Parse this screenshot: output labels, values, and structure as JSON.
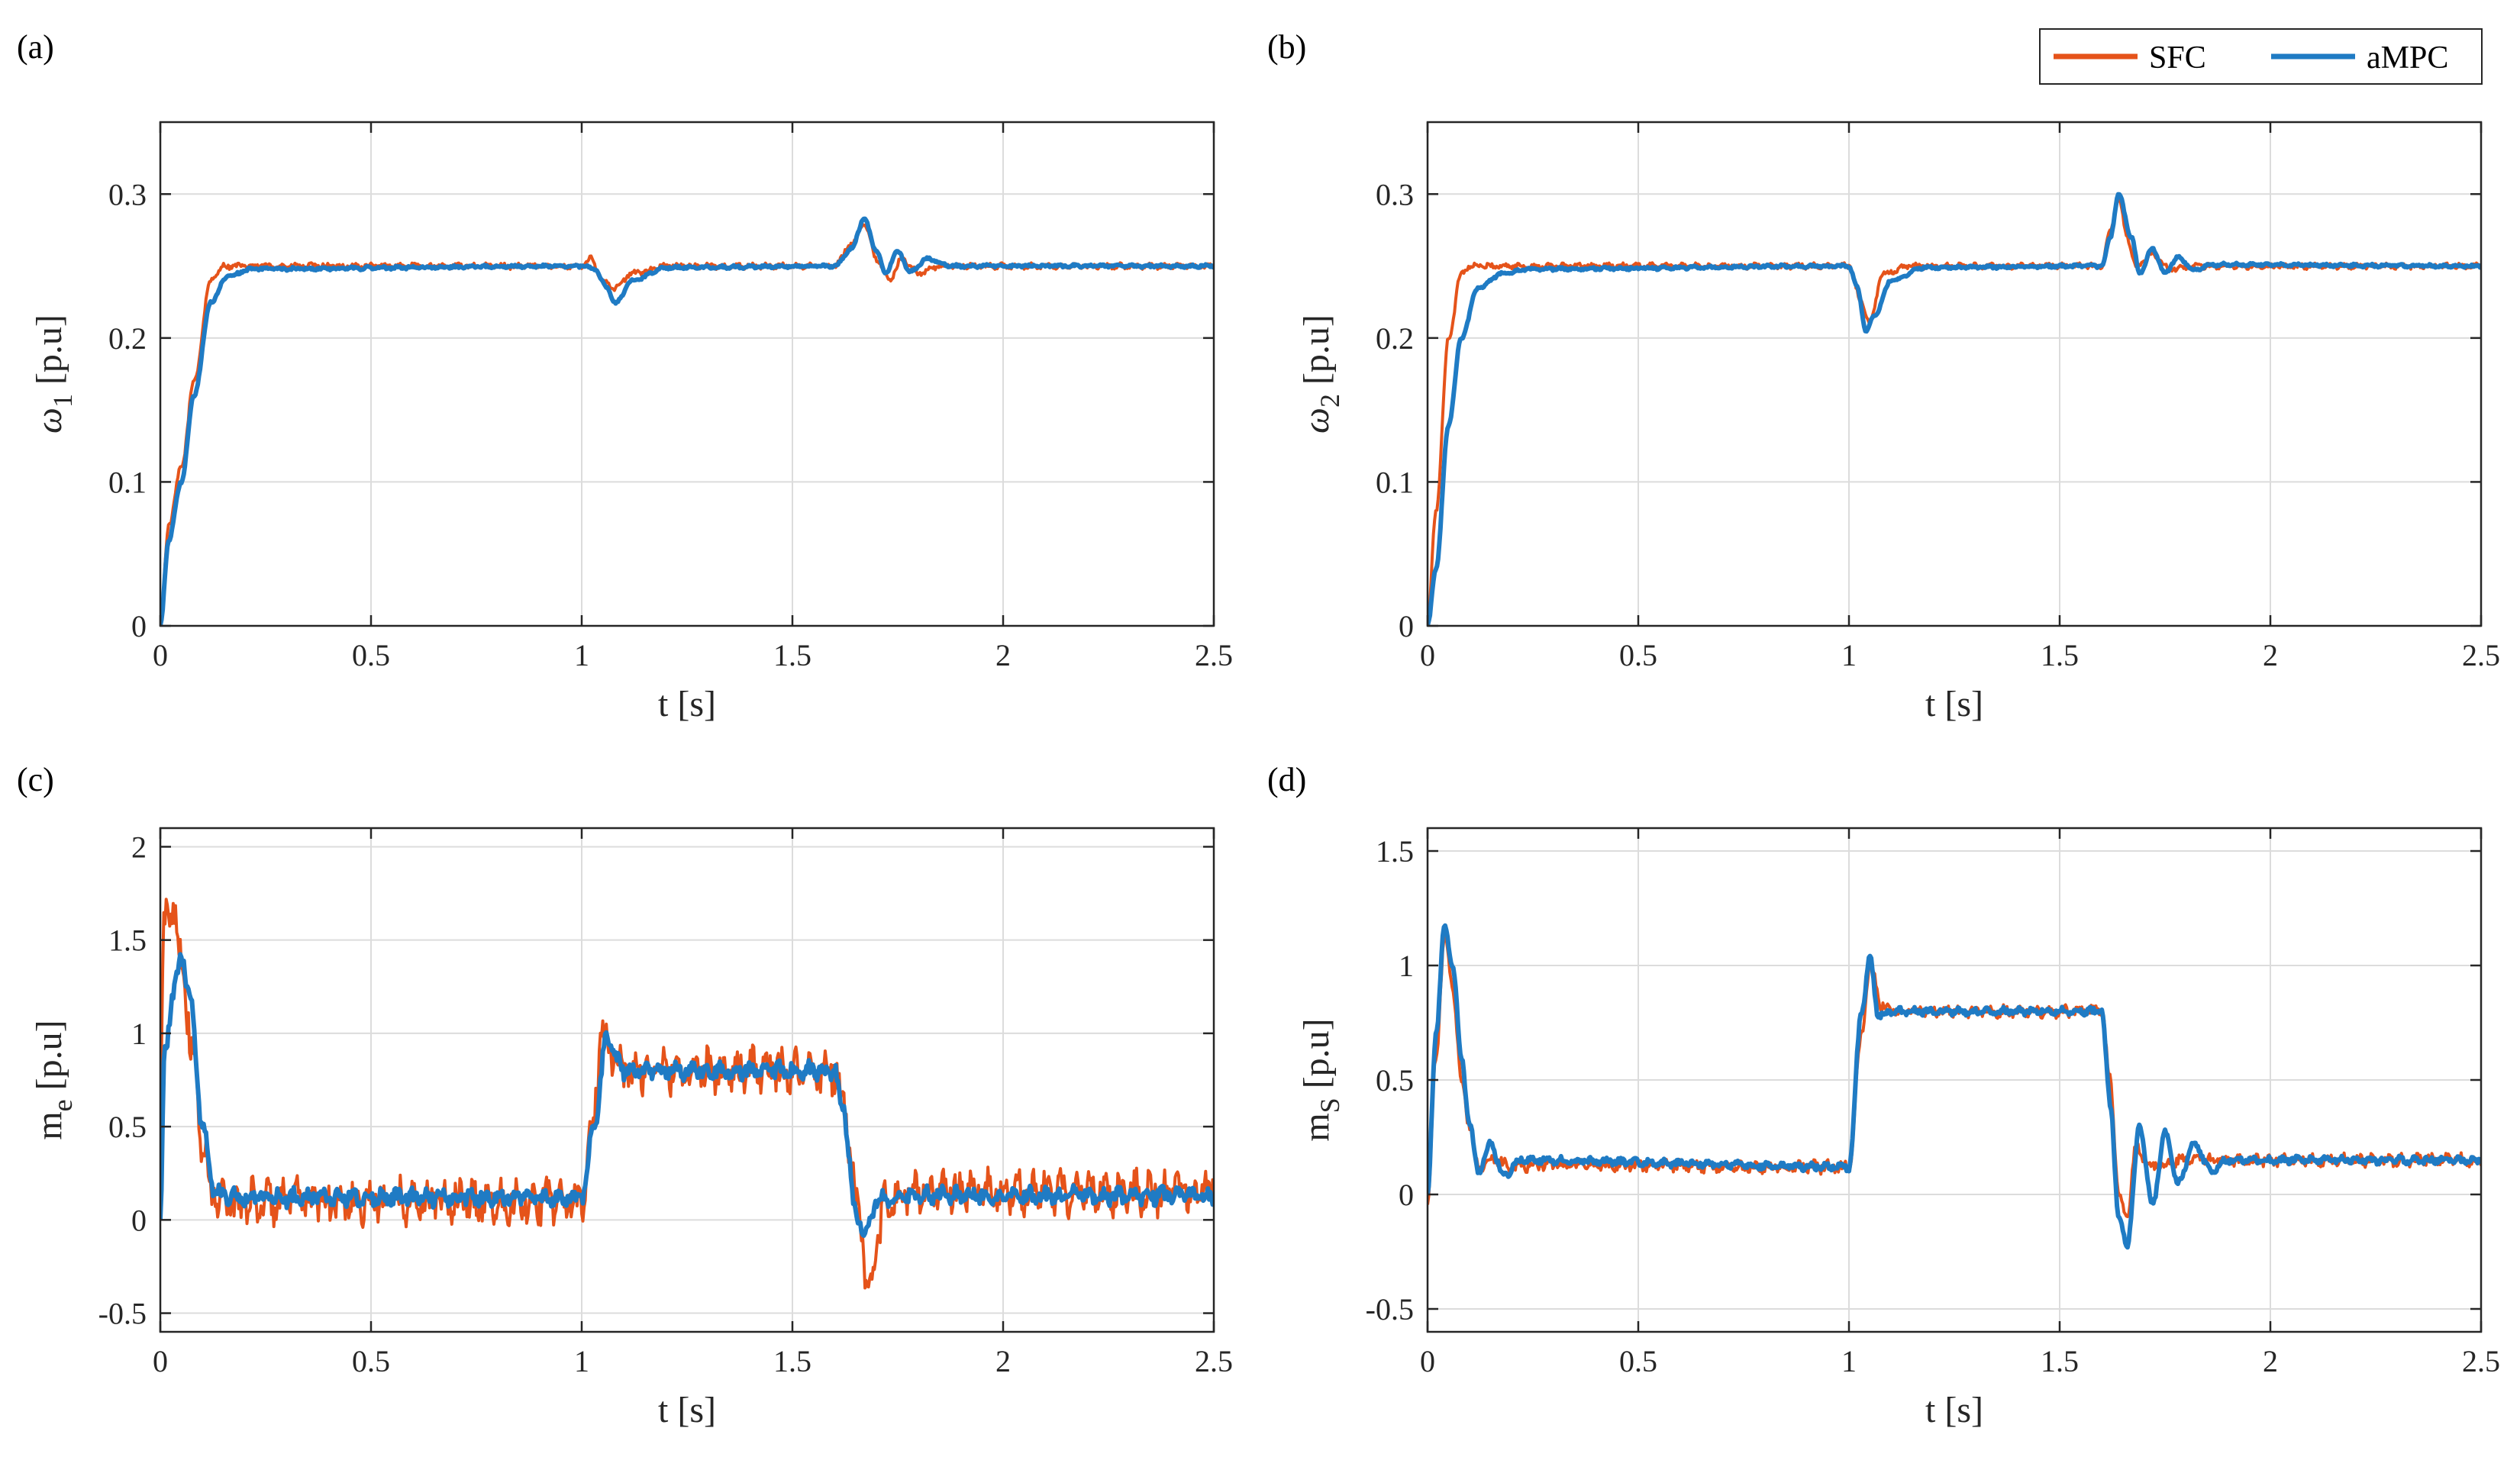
{
  "figure": {
    "legend": [
      {
        "label": "SFC",
        "color": "#E5531A"
      },
      {
        "label": "aMPC",
        "color": "#1F7BC4"
      }
    ]
  },
  "chart_data": [
    {
      "id": "a",
      "tag": "(a)",
      "type": "line",
      "xlabel": "t [s]",
      "ylabel_main": "ω",
      "ylabel_sub": "1",
      "ylabel_unit": " [p.u]",
      "xlim": [
        0,
        2.5
      ],
      "ylim": [
        0,
        0.35
      ],
      "xticks": [
        0,
        0.5,
        1,
        1.5,
        2,
        2.5
      ],
      "xtick_labels": [
        "0",
        "0.5",
        "1",
        "1.5",
        "2",
        "2.5"
      ],
      "yticks": [
        0,
        0.1,
        0.2,
        0.3
      ],
      "ytick_labels": [
        "0",
        "0.1",
        "0.2",
        "0.3"
      ],
      "grid": true,
      "series": [
        {
          "name": "SFC",
          "color": "#E5531A",
          "noise": 0.0015,
          "x": [
            0,
            0.02,
            0.05,
            0.08,
            0.12,
            0.15,
            0.18,
            1.0,
            1.02,
            1.05,
            1.08,
            1.12,
            1.2,
            1.6,
            1.64,
            1.67,
            1.7,
            1.73,
            1.76,
            1.8,
            1.85,
            2.5
          ],
          "y": [
            0,
            0.07,
            0.11,
            0.17,
            0.24,
            0.25,
            0.25,
            0.25,
            0.255,
            0.24,
            0.235,
            0.245,
            0.25,
            0.25,
            0.265,
            0.28,
            0.255,
            0.24,
            0.255,
            0.245,
            0.25,
            0.25
          ]
        },
        {
          "name": "aMPC",
          "color": "#1F7BC4",
          "noise": 0.0008,
          "x": [
            0,
            0.02,
            0.05,
            0.08,
            0.12,
            0.16,
            0.22,
            1.0,
            1.03,
            1.06,
            1.08,
            1.12,
            1.2,
            1.6,
            1.64,
            1.67,
            1.7,
            1.72,
            1.75,
            1.78,
            1.82,
            1.88,
            2.5
          ],
          "y": [
            0,
            0.06,
            0.1,
            0.16,
            0.225,
            0.243,
            0.248,
            0.25,
            0.248,
            0.235,
            0.224,
            0.24,
            0.249,
            0.25,
            0.262,
            0.283,
            0.26,
            0.245,
            0.26,
            0.246,
            0.255,
            0.25,
            0.25
          ]
        }
      ]
    },
    {
      "id": "b",
      "tag": "(b)",
      "type": "line",
      "xlabel": "t [s]",
      "ylabel_main": "ω",
      "ylabel_sub": "2",
      "ylabel_unit": " [p.u]",
      "xlim": [
        0,
        2.5
      ],
      "ylim": [
        0,
        0.35
      ],
      "xticks": [
        0,
        0.5,
        1,
        1.5,
        2,
        2.5
      ],
      "xtick_labels": [
        "0",
        "0.5",
        "1",
        "1.5",
        "2",
        "2.5"
      ],
      "yticks": [
        0,
        0.1,
        0.2,
        0.3
      ],
      "ytick_labels": [
        "0",
        "0.1",
        "0.2",
        "0.3"
      ],
      "grid": true,
      "series": [
        {
          "name": "SFC",
          "color": "#E5531A",
          "noise": 0.0015,
          "x": [
            0,
            0.02,
            0.05,
            0.08,
            0.1,
            0.13,
            0.2,
            1.0,
            1.03,
            1.05,
            1.08,
            1.15,
            1.2,
            1.6,
            1.62,
            1.64,
            1.66,
            1.68,
            1.72,
            1.76,
            1.82,
            2.5
          ],
          "y": [
            0,
            0.08,
            0.2,
            0.245,
            0.25,
            0.25,
            0.25,
            0.25,
            0.225,
            0.21,
            0.245,
            0.25,
            0.25,
            0.25,
            0.275,
            0.297,
            0.27,
            0.25,
            0.258,
            0.248,
            0.25,
            0.25
          ]
        },
        {
          "name": "aMPC",
          "color": "#1F7BC4",
          "noise": 0.0008,
          "x": [
            0,
            0.02,
            0.05,
            0.08,
            0.12,
            0.18,
            0.25,
            1.0,
            1.02,
            1.04,
            1.06,
            1.1,
            1.18,
            1.6,
            1.62,
            1.64,
            1.67,
            1.69,
            1.72,
            1.75,
            1.78,
            1.82,
            1.86,
            2.5
          ],
          "y": [
            0,
            0.04,
            0.14,
            0.2,
            0.235,
            0.245,
            0.248,
            0.25,
            0.235,
            0.205,
            0.215,
            0.24,
            0.249,
            0.25,
            0.27,
            0.3,
            0.27,
            0.245,
            0.262,
            0.245,
            0.256,
            0.247,
            0.251,
            0.25
          ]
        }
      ]
    },
    {
      "id": "c",
      "tag": "(c)",
      "type": "line",
      "xlabel": "t [s]",
      "ylabel_main": "m",
      "ylabel_sub": "e",
      "ylabel_unit": " [p.u]",
      "xlim": [
        0,
        2.5
      ],
      "ylim": [
        -0.6,
        2.1
      ],
      "xticks": [
        0,
        0.5,
        1,
        1.5,
        2,
        2.5
      ],
      "xtick_labels": [
        "0",
        "0.5",
        "1",
        "1.5",
        "2",
        "2.5"
      ],
      "yticks": [
        -0.5,
        0,
        0.5,
        1,
        1.5,
        2
      ],
      "ytick_labels": [
        "-0.5",
        "0",
        "0.5",
        "1",
        "1.5",
        "2"
      ],
      "grid": true,
      "series": [
        {
          "name": "SFC",
          "color": "#E5531A",
          "noise": 0.09,
          "x": [
            0,
            0.01,
            0.03,
            0.05,
            0.08,
            0.1,
            0.12,
            0.15,
            1.0,
            1.02,
            1.05,
            1.1,
            1.6,
            1.62,
            1.66,
            1.68,
            1.72,
            1.8,
            2.5
          ],
          "y": [
            0.7,
            1.6,
            1.7,
            1.4,
            0.8,
            0.4,
            0.15,
            0.1,
            0.1,
            0.4,
            1.0,
            0.8,
            0.8,
            0.6,
            0.0,
            -0.45,
            0.1,
            0.15,
            0.15
          ]
        },
        {
          "name": "aMPC",
          "color": "#1F7BC4",
          "noise": 0.035,
          "x": [
            0,
            0.01,
            0.03,
            0.05,
            0.07,
            0.1,
            0.13,
            0.16,
            1.0,
            1.03,
            1.06,
            1.1,
            1.6,
            1.62,
            1.65,
            1.67,
            1.7,
            1.75,
            2.5
          ],
          "y": [
            0.0,
            0.9,
            1.2,
            1.42,
            1.2,
            0.5,
            0.15,
            0.12,
            0.12,
            0.5,
            0.98,
            0.8,
            0.8,
            0.6,
            0.05,
            -0.08,
            0.1,
            0.13,
            0.13
          ]
        }
      ]
    },
    {
      "id": "d",
      "tag": "(d)",
      "type": "line",
      "xlabel": "t [s]",
      "ylabel_main": "m",
      "ylabel_sub": "S",
      "ylabel_unit": " [p.u]",
      "xlim": [
        0,
        2.5
      ],
      "ylim": [
        -0.6,
        1.6
      ],
      "xticks": [
        0,
        0.5,
        1,
        1.5,
        2,
        2.5
      ],
      "xtick_labels": [
        "0",
        "0.5",
        "1",
        "1.5",
        "2",
        "2.5"
      ],
      "yticks": [
        -0.5,
        0,
        0.5,
        1,
        1.5
      ],
      "ytick_labels": [
        "-0.5",
        "0",
        "0.5",
        "1",
        "1.5"
      ],
      "grid": true,
      "series": [
        {
          "name": "SFC",
          "color": "#E5531A",
          "noise": 0.02,
          "x": [
            0,
            0.02,
            0.04,
            0.06,
            0.08,
            0.1,
            0.12,
            0.16,
            0.2,
            0.25,
            1.0,
            1.03,
            1.05,
            1.08,
            1.12,
            1.6,
            1.62,
            1.64,
            1.66,
            1.68,
            1.72,
            1.8,
            2.5
          ],
          "y": [
            -0.05,
            0.6,
            1.12,
            0.9,
            0.5,
            0.3,
            0.12,
            0.15,
            0.12,
            0.13,
            0.12,
            0.7,
            1.0,
            0.82,
            0.8,
            0.8,
            0.5,
            0.0,
            -0.1,
            0.2,
            0.12,
            0.15,
            0.15
          ]
        },
        {
          "name": "aMPC",
          "color": "#1F7BC4",
          "noise": 0.012,
          "x": [
            0,
            0.02,
            0.04,
            0.06,
            0.08,
            0.1,
            0.12,
            0.15,
            0.18,
            0.22,
            1.0,
            1.03,
            1.05,
            1.07,
            1.1,
            1.6,
            1.62,
            1.64,
            1.66,
            1.69,
            1.72,
            1.75,
            1.78,
            1.82,
            1.86,
            1.9,
            2.5
          ],
          "y": [
            0.0,
            0.7,
            1.17,
            1.0,
            0.6,
            0.3,
            0.1,
            0.22,
            0.08,
            0.15,
            0.12,
            0.8,
            1.03,
            0.78,
            0.8,
            0.8,
            0.4,
            -0.1,
            -0.22,
            0.3,
            -0.05,
            0.27,
            0.05,
            0.22,
            0.1,
            0.15,
            0.15
          ]
        }
      ]
    }
  ]
}
